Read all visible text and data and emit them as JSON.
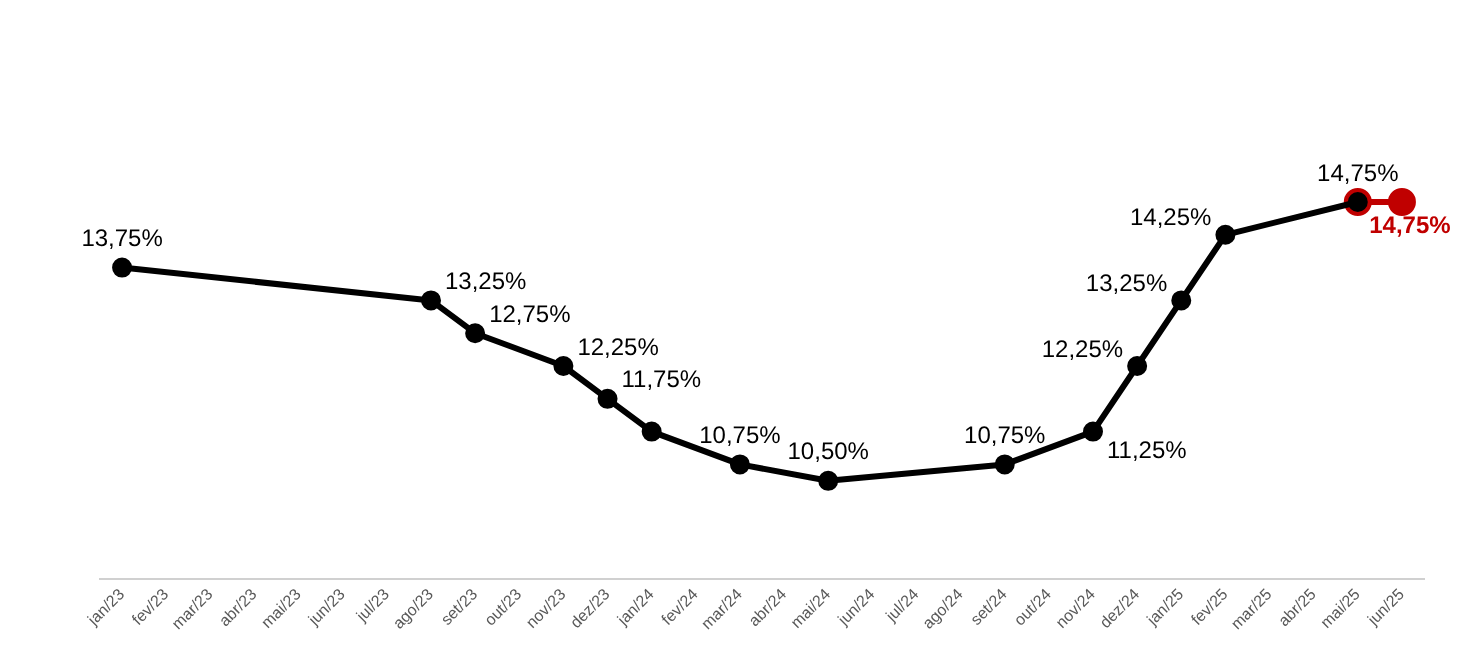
{
  "chart_data": {
    "type": "line",
    "categories": [
      "jan/23",
      "fev/23",
      "mar/23",
      "abr/23",
      "mai/23",
      "jun/23",
      "jul/23",
      "ago/23",
      "set/23",
      "out/23",
      "nov/23",
      "dez/23",
      "jan/24",
      "fev/24",
      "mar/24",
      "abr/24",
      "mai/24",
      "jun/24",
      "jul/24",
      "ago/24",
      "set/24",
      "out/24",
      "nov/24",
      "dez/24",
      "jan/25",
      "fev/25",
      "mar/25",
      "abr/25",
      "mai/25",
      "jun/25"
    ],
    "series": [
      {
        "color": "#000000",
        "values": [
          13.75,
          null,
          null,
          null,
          null,
          null,
          null,
          13.25,
          12.75,
          null,
          12.25,
          11.75,
          11.25,
          null,
          10.75,
          null,
          10.5,
          null,
          null,
          null,
          10.75,
          null,
          11.25,
          12.25,
          13.25,
          14.25,
          null,
          null,
          14.75,
          null
        ],
        "value_labels": [
          "13,75%",
          null,
          null,
          null,
          null,
          null,
          null,
          "13,25%",
          "12,75%",
          null,
          "12,25%",
          "11,75%",
          null,
          null,
          "10,75%",
          null,
          "10,50%",
          null,
          null,
          null,
          "10,75%",
          null,
          "11,25%",
          "12,25%",
          "13,25%",
          "14,25%",
          null,
          null,
          "14,75%",
          null
        ]
      },
      {
        "color": "#c00000",
        "values": [
          null,
          null,
          null,
          null,
          null,
          null,
          null,
          null,
          null,
          null,
          null,
          null,
          null,
          null,
          null,
          null,
          null,
          null,
          null,
          null,
          null,
          null,
          null,
          null,
          null,
          null,
          null,
          null,
          14.75,
          14.75
        ],
        "value_labels": [
          null,
          null,
          null,
          null,
          null,
          null,
          null,
          null,
          null,
          null,
          null,
          null,
          null,
          null,
          null,
          null,
          null,
          null,
          null,
          null,
          null,
          null,
          null,
          null,
          null,
          null,
          null,
          null,
          null,
          "14,75%"
        ]
      }
    ],
    "marker": "circle",
    "line_style": "solid",
    "grid": false,
    "legend": false,
    "tick_labels": "x"
  }
}
